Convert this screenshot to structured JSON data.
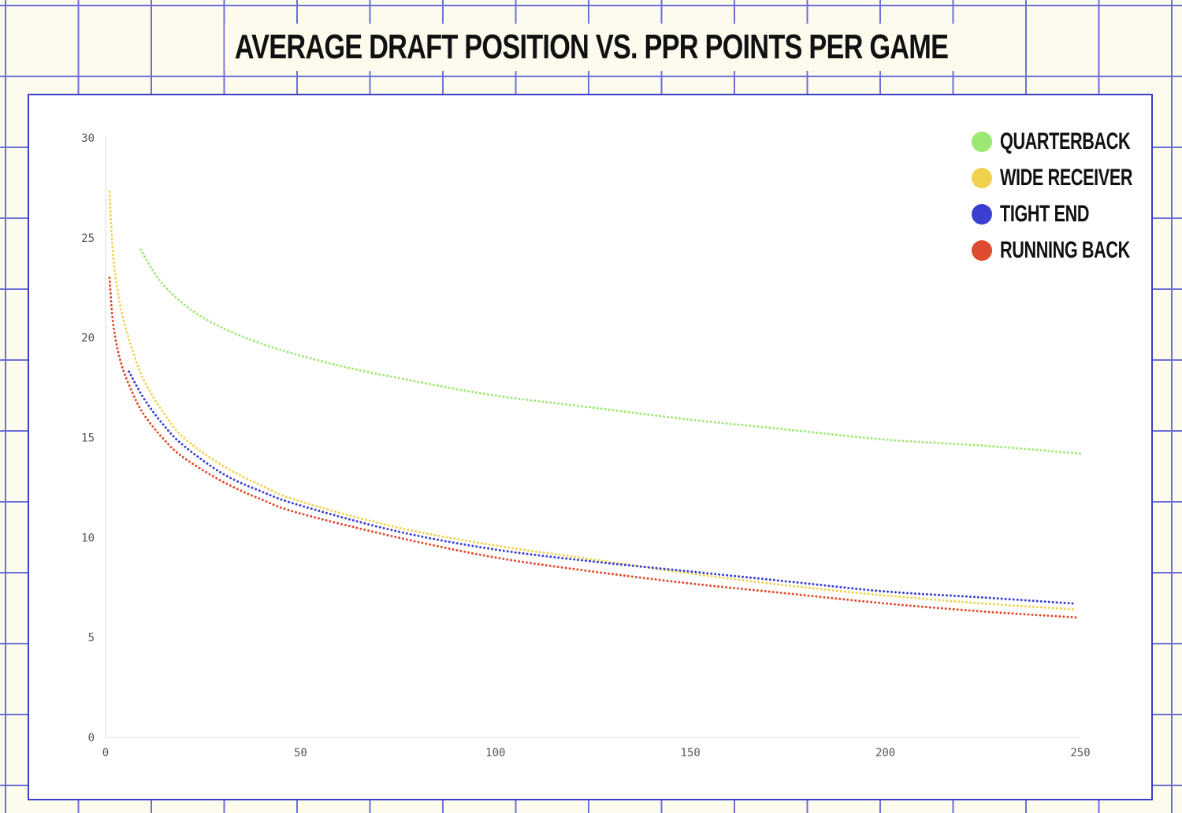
{
  "title": "AVERAGE DRAFT POSITION VS. PPR POINTS PER GAME",
  "colors": {
    "background": "#fdfaee",
    "grid": "#6b6fd9",
    "panel_border": "#3a3fc8",
    "axis": "#d9d9d9"
  },
  "chart_data": {
    "type": "line",
    "title": "AVERAGE DRAFT POSITION VS. PPR POINTS PER GAME",
    "xlabel": "",
    "ylabel": "",
    "xlim": [
      0,
      250
    ],
    "ylim": [
      0,
      30
    ],
    "x_ticks": [
      0,
      50,
      100,
      150,
      200,
      250
    ],
    "y_ticks": [
      0,
      5,
      10,
      15,
      20,
      25,
      30
    ],
    "grid": false,
    "legend_position": "top-right",
    "line_style": "dotted",
    "series": [
      {
        "name": "QUARTERBACK",
        "color": "#9de872",
        "x": [
          9,
          15,
          25,
          40,
          60,
          80,
          100,
          125,
          150,
          175,
          200,
          225,
          250
        ],
        "y": [
          24.4,
          22.6,
          21.0,
          19.7,
          18.6,
          17.8,
          17.1,
          16.5,
          15.9,
          15.4,
          14.9,
          14.6,
          14.2
        ]
      },
      {
        "name": "WIDE RECEIVER",
        "color": "#f1d24e",
        "x": [
          1,
          2,
          4,
          7,
          10,
          15,
          20,
          30,
          40,
          50,
          75,
          100,
          125,
          150,
          175,
          200,
          225,
          249
        ],
        "y": [
          27.3,
          24.0,
          21.4,
          19.3,
          17.8,
          16.2,
          15.0,
          13.6,
          12.6,
          11.8,
          10.5,
          9.6,
          8.9,
          8.2,
          7.6,
          7.1,
          6.7,
          6.4
        ]
      },
      {
        "name": "TIGHT END",
        "color": "#3a3fd0",
        "x": [
          6,
          10,
          15,
          20,
          30,
          40,
          50,
          75,
          100,
          125,
          150,
          175,
          200,
          225,
          248
        ],
        "y": [
          18.3,
          16.9,
          15.6,
          14.6,
          13.2,
          12.3,
          11.6,
          10.3,
          9.4,
          8.8,
          8.3,
          7.8,
          7.3,
          7.0,
          6.7
        ]
      },
      {
        "name": "RUNNING BACK",
        "color": "#de4b2e",
        "x": [
          1,
          2,
          4,
          7,
          10,
          15,
          20,
          30,
          40,
          50,
          75,
          100,
          125,
          150,
          175,
          200,
          225,
          249
        ],
        "y": [
          23.0,
          20.6,
          18.7,
          17.2,
          16.1,
          14.9,
          14.0,
          12.8,
          11.9,
          11.2,
          10.0,
          9.0,
          8.3,
          7.7,
          7.2,
          6.7,
          6.3,
          6.0
        ]
      }
    ]
  }
}
